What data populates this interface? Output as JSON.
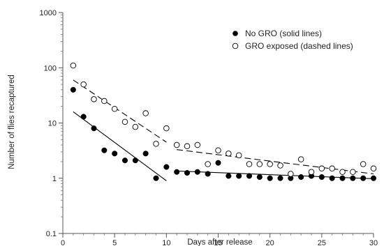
{
  "chart_data": {
    "type": "scatter",
    "xlabel": "Days after release",
    "ylabel": "Number of flies recaptured",
    "x_scale": "linear",
    "y_scale": "log",
    "xlim": [
      0,
      30
    ],
    "ylim": [
      0.1,
      1000
    ],
    "x_ticks": [
      "0",
      "5",
      "10",
      "15",
      "20",
      "25",
      "30"
    ],
    "y_ticks": [
      "0.1",
      "1",
      "10",
      "100",
      "1000"
    ],
    "grid": false,
    "legend_position": "top-right",
    "series": [
      {
        "name": "No GRO (solid lines)",
        "marker": "filled-circle",
        "color": "#000000",
        "points": [
          [
            1,
            40
          ],
          [
            2,
            13
          ],
          [
            3,
            8
          ],
          [
            4,
            3.2
          ],
          [
            5,
            2.8
          ],
          [
            6,
            2.1
          ],
          [
            7,
            2.1
          ],
          [
            8,
            2.8
          ],
          [
            9,
            1.0
          ],
          [
            10,
            1.6
          ],
          [
            11,
            1.3
          ],
          [
            12,
            1.25
          ],
          [
            13,
            1.3
          ],
          [
            14,
            1.2
          ],
          [
            15,
            1.9
          ],
          [
            16,
            1.1
          ],
          [
            17,
            1.1
          ],
          [
            18,
            1.1
          ],
          [
            19,
            1.05
          ],
          [
            20,
            1.0
          ],
          [
            21,
            1.0
          ],
          [
            22,
            1.0
          ],
          [
            23,
            1.05
          ],
          [
            24,
            1.1
          ],
          [
            25,
            1.05
          ],
          [
            26,
            1.0
          ],
          [
            27,
            1.0
          ],
          [
            28,
            1.0
          ],
          [
            29,
            1.0
          ],
          [
            30,
            1.0
          ]
        ],
        "fit_segments": [
          {
            "x": [
              1,
              10
            ],
            "y": [
              16,
              0.9
            ]
          },
          {
            "x": [
              11,
              30
            ],
            "y": [
              1.35,
              0.98
            ]
          }
        ],
        "fit_style": "solid"
      },
      {
        "name": "GRO exposed (dashed lines)",
        "marker": "open-circle",
        "color": "#000000",
        "points": [
          [
            1,
            110
          ],
          [
            2,
            50
          ],
          [
            3,
            27
          ],
          [
            4,
            25
          ],
          [
            5,
            18
          ],
          [
            6,
            10.5
          ],
          [
            7,
            8.5
          ],
          [
            8,
            15
          ],
          [
            9,
            4.2
          ],
          [
            10,
            8
          ],
          [
            11,
            4
          ],
          [
            12,
            3.8
          ],
          [
            13,
            4
          ],
          [
            14,
            1.8
          ],
          [
            15,
            3.2
          ],
          [
            16,
            2.8
          ],
          [
            17,
            2.6
          ],
          [
            18,
            1.8
          ],
          [
            19,
            1.8
          ],
          [
            20,
            1.8
          ],
          [
            21,
            1.7
          ],
          [
            22,
            1.2
          ],
          [
            23,
            2.2
          ],
          [
            24,
            1.3
          ],
          [
            25,
            1.5
          ],
          [
            26,
            1.5
          ],
          [
            27,
            1.3
          ],
          [
            28,
            1.3
          ],
          [
            29,
            1.8
          ],
          [
            30,
            1.5
          ]
        ],
        "fit_segments": [
          {
            "x": [
              1,
              10
            ],
            "y": [
              60,
              4.5
            ]
          },
          {
            "x": [
              11,
              30
            ],
            "y": [
              3.3,
              1.2
            ]
          }
        ],
        "fit_style": "dashed"
      }
    ]
  }
}
